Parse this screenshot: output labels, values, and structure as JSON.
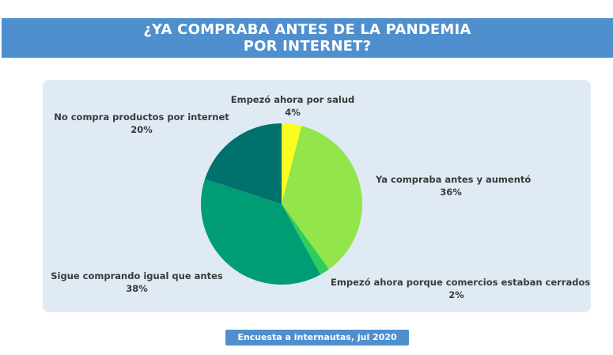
{
  "header": {
    "title": "¿YA COMPRABA ANTES DE LA PANDEMIA\nPOR INTERNET?"
  },
  "chart_data": {
    "type": "pie",
    "slices": [
      {
        "label": "Empezó ahora por salud",
        "value": 4,
        "value_label": "4%",
        "color": "#fbfc1f"
      },
      {
        "label": "Ya compraba antes y aumentó",
        "value": 36,
        "value_label": "36%",
        "color": "#92e54b"
      },
      {
        "label": "Empezó ahora porque comercios estaban cerrados",
        "value": 2,
        "value_label": "2%",
        "color": "#2fcd5e"
      },
      {
        "label": "Sigue comprando igual que antes",
        "value": 38,
        "value_label": "38%",
        "color": "#009d75"
      },
      {
        "label": "No compra productos por internet",
        "value": 20,
        "value_label": "20%",
        "color": "#00716c"
      }
    ]
  },
  "footer": {
    "source": "Encuesta a internautas, jul 2020"
  }
}
